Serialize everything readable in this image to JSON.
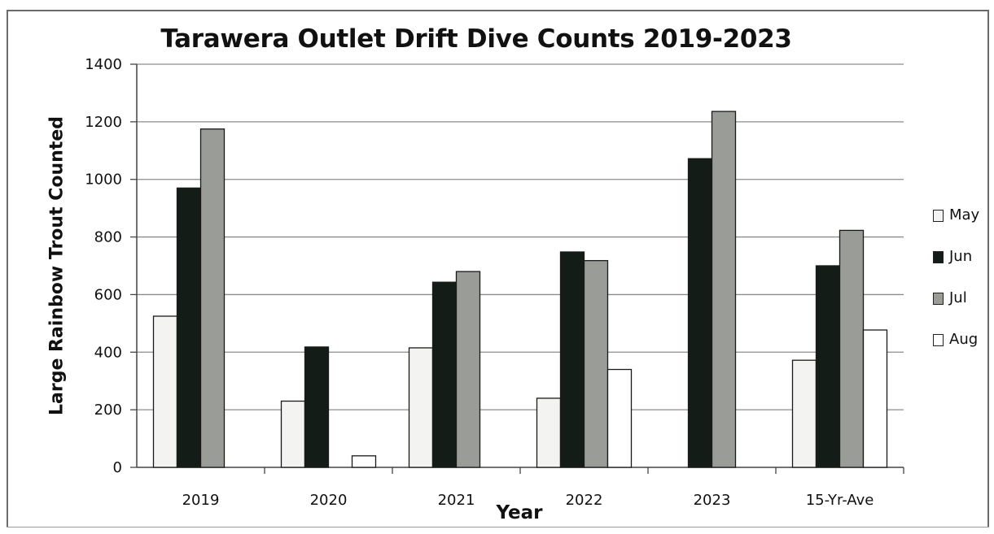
{
  "chart_data": {
    "type": "bar",
    "title": "Tarawera Outlet Drift Dive Counts 2019-2023",
    "xlabel": "Year",
    "ylabel": "Large Rainbow Trout Counted",
    "ylim": [
      0,
      1400
    ],
    "yticks": [
      "0",
      "200",
      "400",
      "600",
      "800",
      "1000",
      "1200",
      "1400"
    ],
    "grid": true,
    "legend_position": "right",
    "categories": [
      "2019",
      "2020",
      "2021",
      "2022",
      "2023",
      "15-Yr-Ave"
    ],
    "series": [
      {
        "name": "May",
        "color": "#f3f4f1",
        "values": [
          525,
          230,
          415,
          240,
          null,
          372
        ]
      },
      {
        "name": "Jun",
        "color": "#141c18",
        "values": [
          970,
          418,
          643,
          748,
          1072,
          700
        ]
      },
      {
        "name": "Jul",
        "color": "#9a9c98",
        "values": [
          1175,
          null,
          680,
          718,
          1236,
          823
        ]
      },
      {
        "name": "Aug",
        "color": "#ffffff",
        "values": [
          null,
          40,
          null,
          340,
          null,
          477
        ]
      }
    ]
  }
}
